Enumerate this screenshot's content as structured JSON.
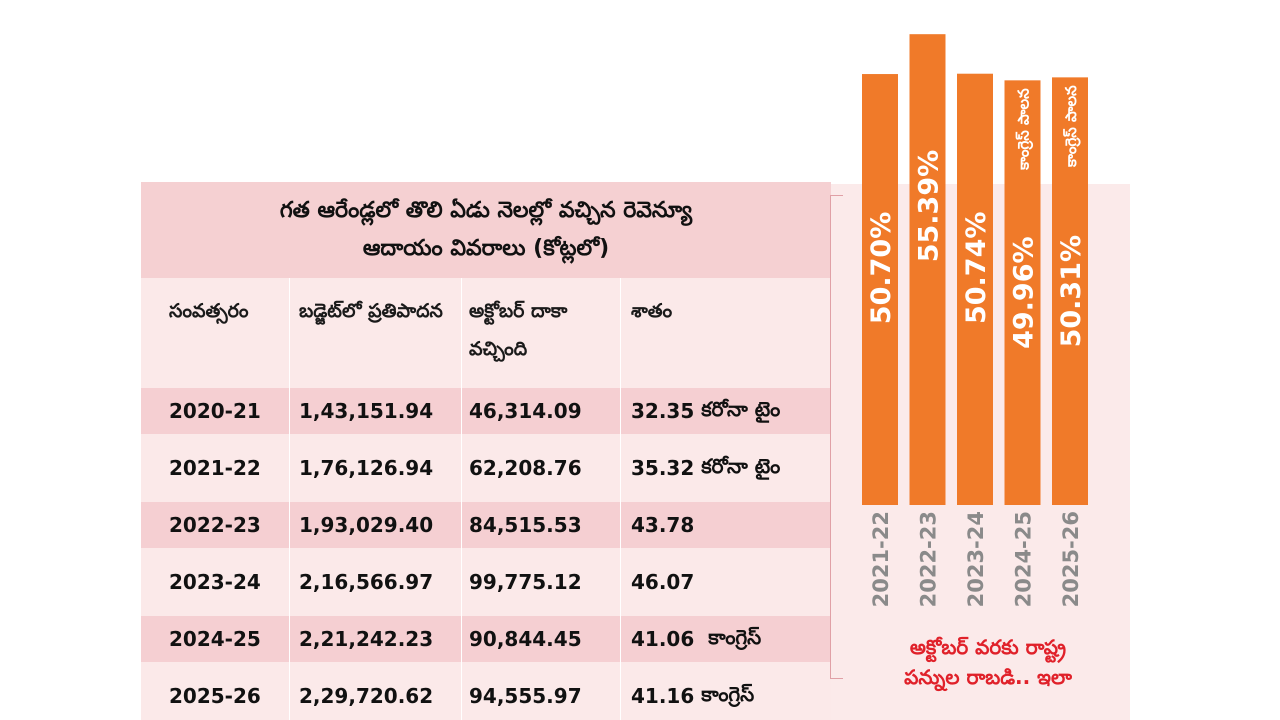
{
  "table": {
    "title_line1": "గత ఆరేండ్లలో తొలి ఏడు నెలల్లో వచ్చిన రెవెన్యూ",
    "title_line2": "ఆదాయం వివరాలు (కోట్లలో)",
    "headers": [
      "సంవత్సరం",
      "బడ్జెట్‌లో ప్రతిపాదన",
      "అక్టోబర్ దాకా వచ్చింది",
      "శాతం"
    ],
    "rows": [
      {
        "year": "2020-21",
        "budget": "1,43,151.94",
        "received": "46,314.09",
        "percent": "32.35",
        "note": "కరోనా టైం"
      },
      {
        "year": "2021-22",
        "budget": "1,76,126.94",
        "received": "62,208.76",
        "percent": "35.32",
        "note": "కరోనా టైం"
      },
      {
        "year": "2022-23",
        "budget": "1,93,029.40",
        "received": "84,515.53",
        "percent": "43.78",
        "note": ""
      },
      {
        "year": "2023-24",
        "budget": "2,16,566.97",
        "received": "99,775.12",
        "percent": "46.07",
        "note": ""
      },
      {
        "year": "2024-25",
        "budget": "2,21,242.23",
        "received": "90,844.45",
        "percent": "41.06",
        "note": "కాంగ్రెస్"
      },
      {
        "year": "2025-26",
        "budget": "2,29,720.62",
        "received": "94,555.97",
        "percent": "41.16",
        "note": "కాంగ్రెస్"
      }
    ]
  },
  "chart_data": {
    "type": "bar",
    "orientation": "vertical",
    "categories": [
      "2021-22",
      "2022-23",
      "2023-24",
      "2024-25",
      "2025-26"
    ],
    "values": [
      50.7,
      55.39,
      50.74,
      49.96,
      50.31
    ],
    "value_labels": [
      "50.70%",
      "55.39%",
      "50.74%",
      "49.96%",
      "50.31%"
    ],
    "annotations": [
      "",
      "",
      "",
      "కాంగ్రెస్ పాలన",
      "కాంగ్రెస్ పాలన"
    ],
    "unit": "%",
    "ylim": [
      0,
      62
    ],
    "bar_color": "#f07a29"
  },
  "caption": {
    "line1": "అక్టోబర్ వరకు రాష్ట్ర",
    "line2": "పన్నుల రాబడి.. ఇలా"
  }
}
